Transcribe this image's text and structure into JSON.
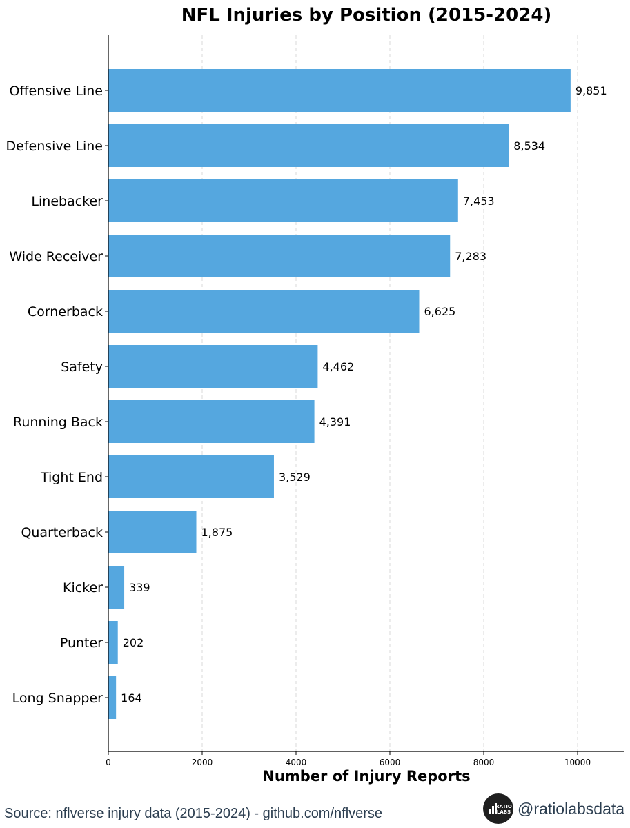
{
  "chart_data": {
    "type": "bar",
    "orientation": "horizontal",
    "title": "NFL Injuries by Position (2015-2024)",
    "xlabel": "Number of Injury Reports",
    "ylabel": "",
    "categories": [
      "Offensive Line",
      "Defensive Line",
      "Linebacker",
      "Wide Receiver",
      "Cornerback",
      "Safety",
      "Running Back",
      "Tight End",
      "Quarterback",
      "Kicker",
      "Punter",
      "Long Snapper"
    ],
    "values": [
      9851,
      8534,
      7453,
      7283,
      6625,
      4462,
      4391,
      3529,
      1875,
      339,
      202,
      164
    ],
    "value_labels": [
      "9,851",
      "8,534",
      "7,453",
      "7,283",
      "6,625",
      "4,462",
      "4,391",
      "3,529",
      "1,875",
      "339",
      "202",
      "164"
    ],
    "xlim": [
      0,
      11000
    ],
    "xticks": [
      0,
      2000,
      4000,
      6000,
      8000,
      10000
    ],
    "xtick_labels": [
      "0",
      "2000",
      "4000",
      "6000",
      "8000",
      "10000"
    ],
    "grid": "vertical dashed",
    "bar_color": "#55a7df"
  },
  "footer": {
    "source": "Source: nflverse injury data (2015-2024) - github.com/nflverse",
    "handle": "@ratiolabsdata",
    "logo_top": "RATIO",
    "logo_bottom": "LABS"
  }
}
